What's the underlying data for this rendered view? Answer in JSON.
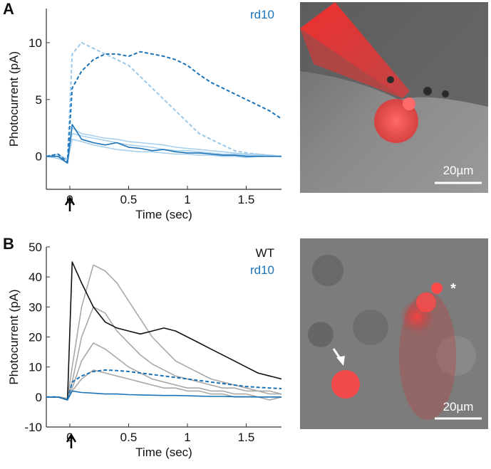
{
  "chart_data": [
    {
      "type": "line",
      "panel_label": "A",
      "xlabel": "Time (sec)",
      "ylabel": "Photocurrent (pA)",
      "annotations": [
        {
          "text": "rd10",
          "color": "#1a73b8"
        }
      ],
      "x": [
        -0.2,
        -0.1,
        -0.02,
        0.02,
        0.1,
        0.2,
        0.3,
        0.4,
        0.5,
        0.6,
        0.7,
        0.8,
        0.9,
        1.0,
        1.1,
        1.2,
        1.3,
        1.4,
        1.5,
        1.6,
        1.7,
        1.8
      ],
      "xlim": [
        -0.2,
        1.8
      ],
      "xticks": [
        0,
        0.5,
        1,
        1.5
      ],
      "ylim": [
        -2.9,
        13
      ],
      "yticks": [
        0,
        5,
        10
      ],
      "series": [
        {
          "color": "#9cc8e8",
          "dash": true,
          "values": [
            0,
            0,
            -0.3,
            9,
            10,
            9.5,
            9,
            8.5,
            8,
            7,
            6,
            5,
            4,
            3,
            2,
            1.5,
            1,
            0.5,
            0.3,
            0.2,
            0.1,
            0
          ]
        },
        {
          "color": "#a9d0ec",
          "dash": false,
          "values": [
            0,
            0.2,
            -0.3,
            2.5,
            2,
            1.8,
            1.6,
            1.5,
            1.3,
            1.2,
            1.1,
            1,
            0.8,
            0.7,
            0.6,
            0.5,
            0.4,
            0.3,
            0.2,
            0.2,
            0.1,
            0
          ]
        },
        {
          "color": "#a9d0ec",
          "dash": false,
          "values": [
            0,
            -0.2,
            -0.5,
            1.5,
            1.3,
            1,
            0.8,
            0.6,
            0.5,
            0.4,
            0.4,
            0.3,
            0.2,
            0.2,
            0.1,
            0.1,
            0,
            0,
            -0.1,
            0,
            0,
            0
          ]
        },
        {
          "color": "#a9d0ec",
          "dash": false,
          "values": [
            0,
            0,
            -0.2,
            2,
            1.8,
            1.6,
            1.4,
            1.2,
            1,
            0.9,
            0.8,
            0.6,
            0.5,
            0.5,
            0.4,
            0.3,
            0.2,
            0.2,
            0.1,
            0.1,
            0,
            0
          ]
        },
        {
          "color": "#1a73b8",
          "dash": true,
          "values": [
            0,
            0.2,
            -0.5,
            6,
            7.5,
            8.5,
            9,
            9,
            8.8,
            9.2,
            9,
            8.8,
            8.5,
            8,
            7.2,
            6.5,
            6,
            5.5,
            5,
            4.5,
            4,
            3.3
          ]
        },
        {
          "color": "#1a73b8",
          "dash": false,
          "values": [
            0,
            0,
            -0.6,
            2.8,
            1.5,
            1.2,
            1,
            1.2,
            0.8,
            0.7,
            0.5,
            0.6,
            0.4,
            0.3,
            0.3,
            0.2,
            0.1,
            0.1,
            0,
            0,
            0,
            0
          ]
        }
      ]
    },
    {
      "type": "line",
      "panel_label": "B",
      "xlabel": "Time (sec)",
      "ylabel": "Photocurrent (pA)",
      "annotations": [
        {
          "text": "WT",
          "color": "#111111"
        },
        {
          "text": "rd10",
          "color": "#1a73b8"
        }
      ],
      "x": [
        -0.2,
        -0.1,
        -0.02,
        0.02,
        0.1,
        0.2,
        0.3,
        0.4,
        0.5,
        0.6,
        0.7,
        0.8,
        0.9,
        1.0,
        1.1,
        1.2,
        1.3,
        1.4,
        1.5,
        1.6,
        1.7,
        1.8
      ],
      "xlim": [
        -0.2,
        1.8
      ],
      "xticks": [
        0,
        0.5,
        1,
        1.5
      ],
      "ylim": [
        -10,
        50
      ],
      "yticks": [
        -10,
        0,
        10,
        20,
        30,
        40,
        50
      ],
      "series": [
        {
          "color": "#a8a8a8",
          "dash": false,
          "values": [
            0,
            0,
            -0.5,
            10,
            30,
            44,
            42,
            38,
            32,
            26,
            20,
            16,
            12,
            10,
            8,
            6,
            5,
            4,
            3,
            2,
            2,
            1
          ]
        },
        {
          "color": "#a8a8a8",
          "dash": false,
          "values": [
            0,
            0,
            -0.5,
            5,
            20,
            30,
            28,
            22,
            18,
            14,
            11,
            9,
            7,
            6,
            5,
            4,
            3,
            3,
            2,
            2,
            1,
            1
          ]
        },
        {
          "color": "#a8a8a8",
          "dash": false,
          "values": [
            0,
            0,
            -0.5,
            3,
            12,
            18,
            16,
            13,
            10,
            8,
            6,
            5,
            4,
            3,
            3,
            2,
            2,
            1,
            1,
            0,
            0,
            0
          ]
        },
        {
          "color": "#a8a8a8",
          "dash": false,
          "values": [
            0,
            0,
            -0.5,
            2,
            6,
            9,
            8,
            7,
            6,
            5,
            4,
            3,
            3,
            2,
            2,
            1,
            1,
            0,
            0,
            0,
            -1,
            0
          ]
        },
        {
          "color": "#111111",
          "dash": false,
          "values": [
            0,
            0,
            -1,
            45,
            38,
            30,
            25,
            23,
            22,
            21,
            22,
            23,
            22,
            20,
            18,
            16,
            14,
            12,
            10,
            8,
            7,
            6
          ]
        },
        {
          "color": "#1a73b8",
          "dash": true,
          "values": [
            0,
            0,
            -1,
            5,
            7,
            8.5,
            9,
            8.8,
            8.5,
            8,
            7.5,
            7,
            6.5,
            6,
            5.5,
            5,
            4.5,
            4,
            3.5,
            3.2,
            3,
            2.8
          ]
        },
        {
          "color": "#1a73b8",
          "dash": false,
          "values": [
            0,
            0,
            -1,
            2,
            1.5,
            1.3,
            1,
            1,
            0.8,
            0.7,
            0.6,
            0.5,
            0.5,
            0.4,
            0.3,
            0.2,
            0.2,
            0.1,
            0.1,
            0,
            0,
            0
          ]
        }
      ]
    }
  ],
  "images": [
    {
      "scale_label": "20µm"
    },
    {
      "scale_label": "20µm",
      "marker": "*"
    }
  ]
}
